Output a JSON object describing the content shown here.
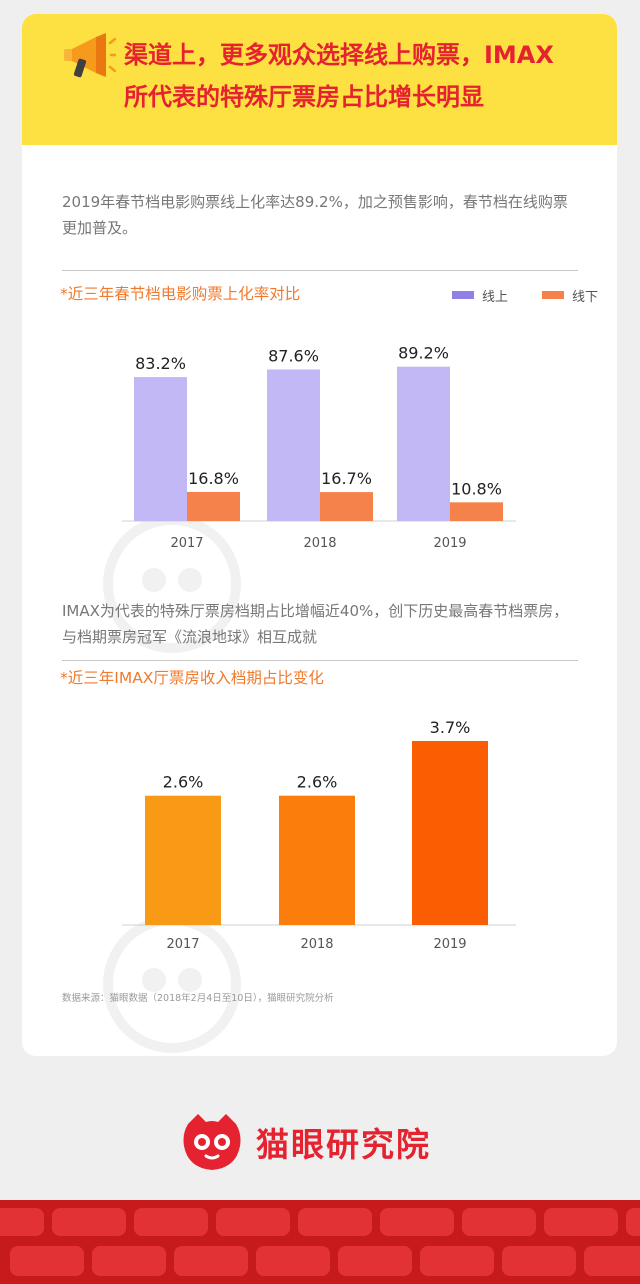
{
  "header": {
    "title_line1": "渠道上，更多观众选择线上购票，IMAX",
    "title_line2": "所代表的特殊厅票房占比增长明显",
    "icon": "megaphone-icon"
  },
  "section1": {
    "text": "2019年春节档电影购票线上化率达89.2%，加之预售影响，春节档在线购票更加普及。"
  },
  "section2": {
    "text": "IMAX为代表的特殊厅票房档期占比增幅近40%，创下历史最高春节档票房，与档期票房冠军《流浪地球》相互成就"
  },
  "source": "数据来源：猫眼数据（2018年2月4日至10日），猫眼研究院分析",
  "brand": {
    "name": "猫眼研究院",
    "logo_icon": "cat-logo-icon"
  },
  "colors": {
    "brand_red": "#e5222f",
    "header_yellow": "#fde142",
    "online": "#c3b8f6",
    "offline": "#f4824a",
    "imax_2017": "#f99a16",
    "imax_2018": "#fb7d0c",
    "imax_2019": "#fb5d02"
  },
  "chart_data": [
    {
      "type": "bar",
      "title": "*近三年春节档电影购票上化率对比",
      "categories": [
        "2017",
        "2018",
        "2019"
      ],
      "series": [
        {
          "name": "线上",
          "values": [
            83.2,
            87.6,
            89.2
          ],
          "labels": [
            "83.2%",
            "87.6%",
            "89.2%"
          ],
          "color": "#c3b8f6",
          "legend_color": "#8f7fe6"
        },
        {
          "name": "线下",
          "values": [
            16.8,
            16.7,
            10.8
          ],
          "labels": [
            "16.8%",
            "16.7%",
            "10.8%"
          ],
          "color": "#f4824a",
          "legend_color": "#f4824a"
        }
      ],
      "ylim": [
        0,
        100
      ],
      "legend": "top-right",
      "grid": false
    },
    {
      "type": "bar",
      "title": "*近三年IMAX厅票房收入档期占比变化",
      "categories": [
        "2017",
        "2018",
        "2019"
      ],
      "values": [
        2.6,
        2.6,
        3.7
      ],
      "labels": [
        "2.6%",
        "2.6%",
        "3.7%"
      ],
      "colors": [
        "#f99a16",
        "#fb7d0c",
        "#fb5d02"
      ],
      "ylim": [
        0,
        4.3
      ],
      "grid": false
    }
  ]
}
